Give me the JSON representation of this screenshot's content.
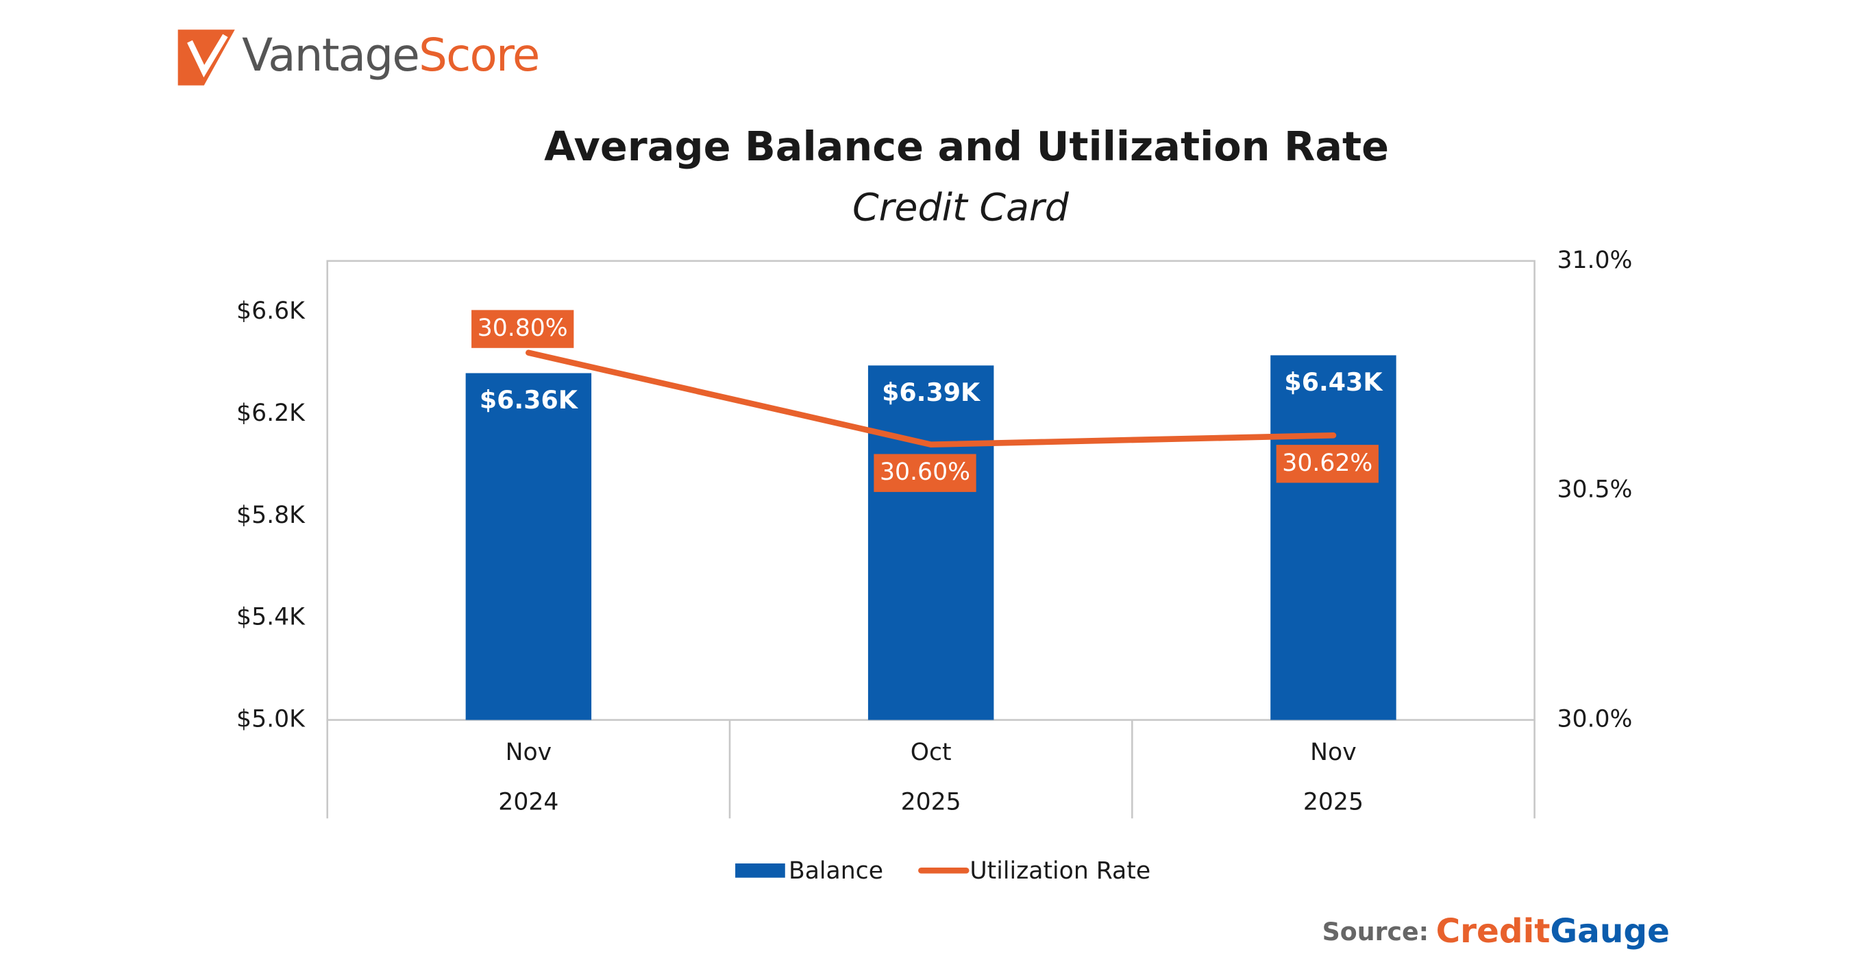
{
  "header": {
    "logo_a": "Vantage",
    "logo_b": "Score"
  },
  "source": {
    "label": "Source:",
    "name_a": "Credit",
    "name_b": "Gauge"
  },
  "chart_data": {
    "type": "bar",
    "title": "Average Balance and Utilization Rate",
    "subtitle": "Credit Card",
    "categories": [
      [
        "Nov",
        "2024"
      ],
      [
        "Oct",
        "2025"
      ],
      [
        "Nov",
        "2025"
      ]
    ],
    "ylim": [
      5000,
      6800
    ],
    "yticks": [
      {
        "value": 5000,
        "label": "$5.0K"
      },
      {
        "value": 5400,
        "label": "$5.4K"
      },
      {
        "value": 5800,
        "label": "$5.8K"
      },
      {
        "value": 6200,
        "label": "$6.2K"
      },
      {
        "value": 6600,
        "label": "$6.6K"
      }
    ],
    "y2lim": [
      30,
      31
    ],
    "y2ticks": [
      {
        "value": 30,
        "label": "30.0%"
      },
      {
        "value": 30.5,
        "label": "30.5%"
      },
      {
        "value": 31,
        "label": "31.0%"
      }
    ],
    "grid": false,
    "legend": "bottom",
    "series": [
      {
        "name": "Balance",
        "type": "bar",
        "color": "#0b5cad",
        "values": [
          6360,
          6390,
          6430
        ],
        "value_labels": [
          "$6.36K",
          "$6.39K",
          "$6.43K"
        ]
      },
      {
        "name": "Utilization Rate",
        "type": "line",
        "axis": "y2",
        "color": "#e8612c",
        "values": [
          30.8,
          30.6,
          30.62
        ],
        "value_labels": [
          "30.80%",
          "30.60%",
          "30.62%"
        ]
      }
    ]
  }
}
